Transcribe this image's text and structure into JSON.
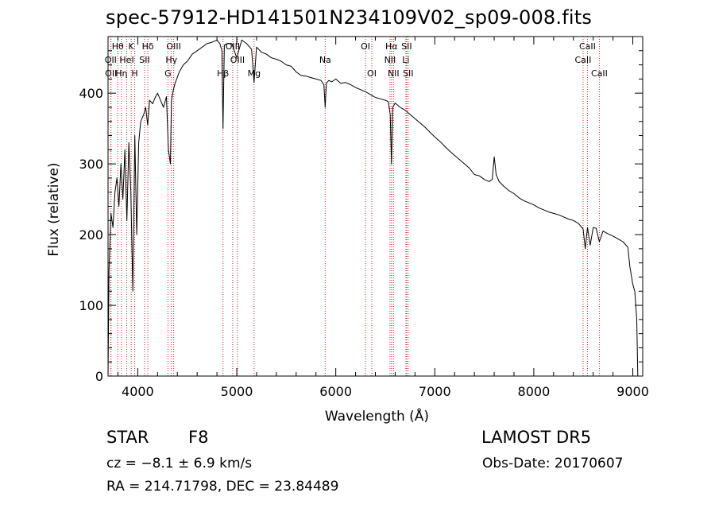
{
  "chart_data": {
    "type": "line",
    "title": "spec-57912-HD141501N234109V02_sp09-008.fits",
    "xlabel": "Wavelength (Å)",
    "ylabel": "Flux (relative)",
    "xlim": [
      3700,
      9100
    ],
    "ylim": [
      0,
      480
    ],
    "x_ticks": [
      4000,
      5000,
      6000,
      7000,
      8000,
      9000
    ],
    "x_tick_labels": [
      "4000",
      "5000",
      "6000",
      "7000",
      "8000",
      "9000"
    ],
    "y_ticks": [
      0,
      100,
      200,
      300,
      400
    ],
    "y_tick_labels": [
      "0",
      "100",
      "200",
      "300",
      "400"
    ],
    "grid": false,
    "legend": "none",
    "line_color": "#000000",
    "marker_color": "#cc2222",
    "series": [
      {
        "x": [
          3700,
          3710,
          3730,
          3750,
          3770,
          3790,
          3810,
          3830,
          3850,
          3870,
          3890,
          3910,
          3930,
          3950,
          3970,
          3990,
          4010,
          4030,
          4060,
          4080,
          4100,
          4120,
          4150,
          4180,
          4200,
          4230,
          4260,
          4290,
          4310,
          4330,
          4340,
          4360,
          4380,
          4420,
          4460,
          4500,
          4550,
          4600,
          4650,
          4700,
          4750,
          4800,
          4830,
          4850,
          4861,
          4875,
          4900,
          4950,
          5000,
          5050,
          5100,
          5150,
          5175,
          5200,
          5250,
          5300,
          5350,
          5400,
          5450,
          5500,
          5550,
          5600,
          5650,
          5700,
          5750,
          5800,
          5850,
          5880,
          5893,
          5905,
          5930,
          5960,
          6000,
          6050,
          6100,
          6150,
          6200,
          6250,
          6300,
          6350,
          6400,
          6450,
          6500,
          6530,
          6550,
          6563,
          6575,
          6600,
          6650,
          6700,
          6750,
          6800,
          6850,
          6900,
          6950,
          7000,
          7050,
          7100,
          7150,
          7200,
          7250,
          7300,
          7350,
          7400,
          7450,
          7500,
          7550,
          7580,
          7600,
          7620,
          7650,
          7700,
          7750,
          7800,
          7850,
          7900,
          7950,
          8000,
          8050,
          8100,
          8150,
          8200,
          8250,
          8300,
          8350,
          8400,
          8450,
          8498,
          8520,
          8542,
          8570,
          8600,
          8630,
          8662,
          8700,
          8750,
          8800,
          8850,
          8900,
          8950,
          8970,
          9000,
          9020,
          9040,
          9050
        ],
        "y": [
          0,
          150,
          230,
          210,
          260,
          280,
          240,
          300,
          250,
          320,
          220,
          330,
          260,
          120,
          340,
          200,
          330,
          360,
          370,
          380,
          355,
          390,
          385,
          395,
          400,
          390,
          380,
          395,
          320,
          300,
          390,
          405,
          415,
          430,
          440,
          445,
          455,
          460,
          465,
          470,
          472,
          475,
          470,
          460,
          350,
          468,
          470,
          470,
          450,
          475,
          470,
          462,
          415,
          465,
          458,
          455,
          450,
          448,
          445,
          440,
          438,
          430,
          425,
          424,
          422,
          420,
          418,
          412,
          380,
          414,
          418,
          416,
          420,
          414,
          415,
          412,
          408,
          405,
          402,
          398,
          394,
          392,
          390,
          388,
          370,
          300,
          380,
          386,
          380,
          376,
          370,
          364,
          358,
          352,
          345,
          338,
          332,
          325,
          318,
          312,
          306,
          300,
          294,
          285,
          283,
          278,
          275,
          278,
          310,
          285,
          275,
          268,
          262,
          258,
          252,
          248,
          245,
          242,
          238,
          235,
          232,
          230,
          228,
          225,
          222,
          220,
          216,
          208,
          180,
          210,
          185,
          210,
          209,
          190,
          205,
          201,
          198,
          194,
          190,
          182,
          155,
          130,
          120,
          80,
          0
        ]
      }
    ],
    "annotations": [
      {
        "label": "Hθ",
        "x": 3798
      },
      {
        "label": "OII",
        "x": 3727
      },
      {
        "label": "OII",
        "x": 3730
      },
      {
        "label": "HeI",
        "x": 3889
      },
      {
        "label": "Hη",
        "x": 3835
      },
      {
        "label": "K",
        "x": 3934
      },
      {
        "label": "H",
        "x": 3969
      },
      {
        "label": "SII",
        "x": 4069
      },
      {
        "label": "Hδ",
        "x": 4102
      },
      {
        "label": "OIII",
        "x": 4363
      },
      {
        "label": "Hγ",
        "x": 4340
      },
      {
        "label": "G",
        "x": 4305
      },
      {
        "label": "Hβ",
        "x": 4861
      },
      {
        "label": "OIII",
        "x": 4959
      },
      {
        "label": "OIII",
        "x": 5007
      },
      {
        "label": "Mg",
        "x": 5175
      },
      {
        "label": "Na",
        "x": 5893
      },
      {
        "label": "OI",
        "x": 6300
      },
      {
        "label": "OI",
        "x": 6364
      },
      {
        "label": "Hα",
        "x": 6563
      },
      {
        "label": "NII",
        "x": 6548
      },
      {
        "label": "NII",
        "x": 6583
      },
      {
        "label": "SII",
        "x": 6716
      },
      {
        "label": "Li",
        "x": 6708
      },
      {
        "label": "SII",
        "x": 6731
      },
      {
        "label": "CaII",
        "x": 8542
      },
      {
        "label": "CaII",
        "x": 8498
      },
      {
        "label": "CaII",
        "x": 8662
      }
    ]
  },
  "info": {
    "class": "STAR",
    "subclass": "F8",
    "survey": "LAMOST DR5",
    "cz": "cz = −8.1 ± 6.9 km/s",
    "obs_date": "Obs-Date: 20170607",
    "coords": "RA = 214.71798, DEC =  23.84489"
  }
}
